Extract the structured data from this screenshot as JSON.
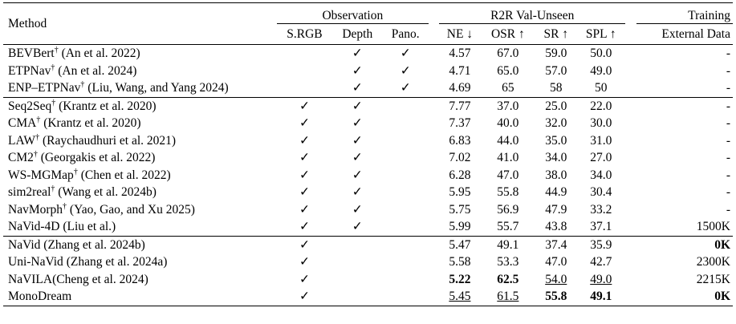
{
  "headers": {
    "method": "Method",
    "observation": "Observation",
    "r2r": "R2R Val-Unseen",
    "training": "Training",
    "srgb": "S.RGB",
    "depth": "Depth",
    "pano": "Pano.",
    "ne": "NE ↓",
    "osr": "OSR ↑",
    "sr": "SR ↑",
    "spl": "SPL ↑",
    "external": "External Data"
  },
  "check": "✓",
  "dagger": "†",
  "groups": [
    [
      {
        "name": "BEVBert",
        "dag": true,
        "cite": "(An et al. 2022)",
        "srgb": false,
        "depth": true,
        "pano": true,
        "ne": "4.57",
        "osr": "67.0",
        "sr": "59.0",
        "spl": "50.0",
        "ext": "-"
      },
      {
        "name": "ETPNav",
        "dag": true,
        "cite": "(An et al. 2024)",
        "srgb": false,
        "depth": true,
        "pano": true,
        "ne": "4.71",
        "osr": "65.0",
        "sr": "57.0",
        "spl": "49.0",
        "ext": "-"
      },
      {
        "name": "ENP–ETPNav",
        "dag": true,
        "cite": "(Liu, Wang, and Yang 2024)",
        "srgb": false,
        "depth": true,
        "pano": true,
        "ne": "4.69",
        "osr": "65",
        "sr": "58",
        "spl": "50",
        "ext": "-"
      }
    ],
    [
      {
        "name": "Seq2Seq",
        "dag": true,
        "cite": "(Krantz et al. 2020)",
        "srgb": true,
        "depth": true,
        "pano": false,
        "ne": "7.77",
        "osr": "37.0",
        "sr": "25.0",
        "spl": "22.0",
        "ext": "-"
      },
      {
        "name": "CMA",
        "dag": true,
        "cite": "(Krantz et al. 2020)",
        "srgb": true,
        "depth": true,
        "pano": false,
        "ne": "7.37",
        "osr": "40.0",
        "sr": "32.0",
        "spl": "30.0",
        "ext": "-"
      },
      {
        "name": "LAW",
        "dag": true,
        "cite": "(Raychaudhuri et al. 2021)",
        "srgb": true,
        "depth": true,
        "pano": false,
        "ne": "6.83",
        "osr": "44.0",
        "sr": "35.0",
        "spl": "31.0",
        "ext": "-"
      },
      {
        "name": "CM2",
        "dag": true,
        "cite": "(Georgakis et al. 2022)",
        "srgb": true,
        "depth": true,
        "pano": false,
        "ne": "7.02",
        "osr": "41.0",
        "sr": "34.0",
        "spl": "27.0",
        "ext": "-"
      },
      {
        "name": "WS-MGMap",
        "dag": true,
        "cite": "(Chen et al. 2022)",
        "srgb": true,
        "depth": true,
        "pano": false,
        "ne": "6.28",
        "osr": "47.0",
        "sr": "38.0",
        "spl": "34.0",
        "ext": "-"
      },
      {
        "name": "sim2real",
        "dag": true,
        "cite": "(Wang et al. 2024b)",
        "srgb": true,
        "depth": true,
        "pano": false,
        "ne": "5.95",
        "osr": "55.8",
        "sr": "44.9",
        "spl": "30.4",
        "ext": "-"
      },
      {
        "name": "NavMorph",
        "dag": true,
        "cite": "(Yao, Gao, and Xu 2025)",
        "srgb": true,
        "depth": true,
        "pano": false,
        "ne": "5.75",
        "osr": "56.9",
        "sr": "47.9",
        "spl": "33.2",
        "ext": "-"
      },
      {
        "name": "NaVid-4D",
        "dag": false,
        "cite": "(Liu et al.)",
        "srgb": true,
        "depth": true,
        "pano": false,
        "ne": "5.99",
        "osr": "55.7",
        "sr": "43.8",
        "spl": "37.1",
        "ext": "1500K"
      }
    ],
    [
      {
        "name": "NaVid",
        "dag": false,
        "cite": "(Zhang et al. 2024b)",
        "srgb": true,
        "depth": false,
        "pano": false,
        "ne": "5.47",
        "osr": "49.1",
        "sr": "37.4",
        "spl": "35.9",
        "ext": "0K",
        "ext_bold": true
      },
      {
        "name": "Uni-NaVid",
        "dag": false,
        "cite": "(Zhang et al. 2024a)",
        "srgb": true,
        "depth": false,
        "pano": false,
        "ne": "5.58",
        "osr": "53.3",
        "sr": "47.0",
        "spl": "42.7",
        "ext": "2300K"
      },
      {
        "name": "NaVILA",
        "dag": false,
        "cite": "(Cheng et al. 2024)",
        "nospace": true,
        "srgb": true,
        "depth": false,
        "pano": false,
        "ne": "5.22",
        "osr": "62.5",
        "sr": "54.0",
        "spl": "49.0",
        "ext": "2215K",
        "style": {
          "ne": "bold",
          "osr": "bold",
          "sr": "ul",
          "spl": "ul"
        }
      },
      {
        "name": "MonoDream",
        "dag": false,
        "cite": "",
        "srgb": true,
        "depth": false,
        "pano": false,
        "ne": "5.45",
        "osr": "61.5",
        "sr": "55.8",
        "spl": "49.1",
        "ext": "0K",
        "ext_bold": true,
        "style": {
          "ne": "ul",
          "osr": "ul",
          "sr": "bold",
          "spl": "bold"
        }
      }
    ]
  ]
}
